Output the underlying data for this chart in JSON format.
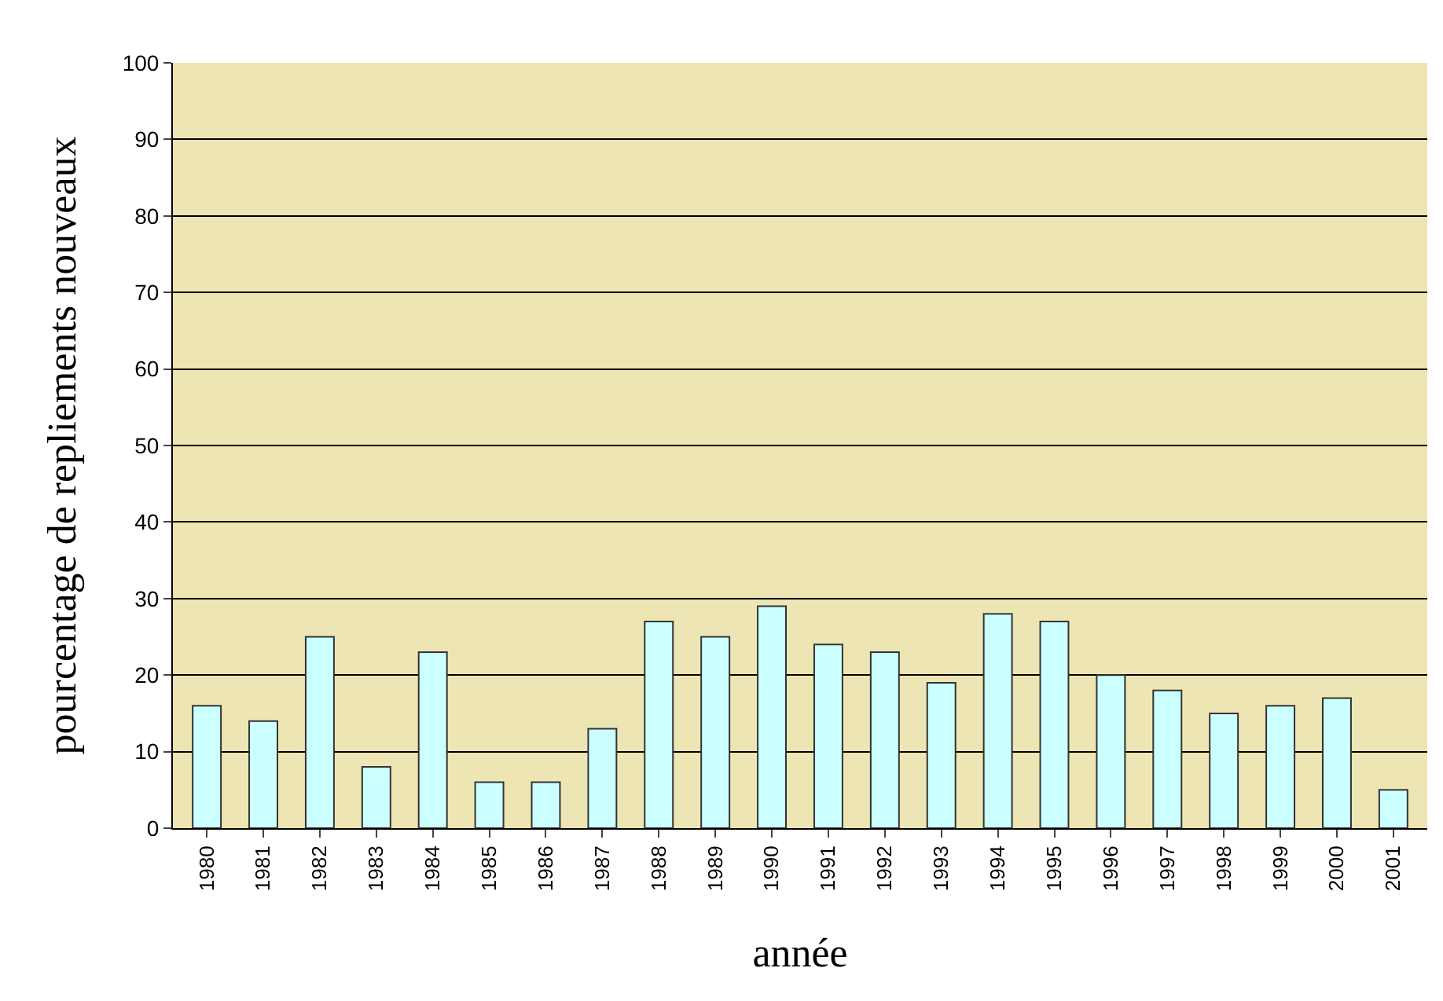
{
  "chart_data": {
    "type": "bar",
    "xlabel": "année",
    "ylabel": "pourcentage de repliements nouveaux",
    "categories": [
      "1980",
      "1981",
      "1982",
      "1983",
      "1984",
      "1985",
      "1986",
      "1987",
      "1988",
      "1989",
      "1990",
      "1991",
      "1992",
      "1993",
      "1994",
      "1995",
      "1996",
      "1997",
      "1998",
      "1999",
      "2000",
      "2001"
    ],
    "values": [
      16,
      14,
      25,
      8,
      23,
      6,
      6,
      13,
      27,
      25,
      29,
      24,
      23,
      19,
      28,
      27,
      20,
      18,
      15,
      16,
      17,
      5
    ],
    "color": "#ccffff",
    "ylim": [
      0,
      100
    ],
    "yticks": [
      0,
      10,
      20,
      30,
      40,
      50,
      60,
      70,
      80,
      90,
      100
    ],
    "grid": "y"
  }
}
